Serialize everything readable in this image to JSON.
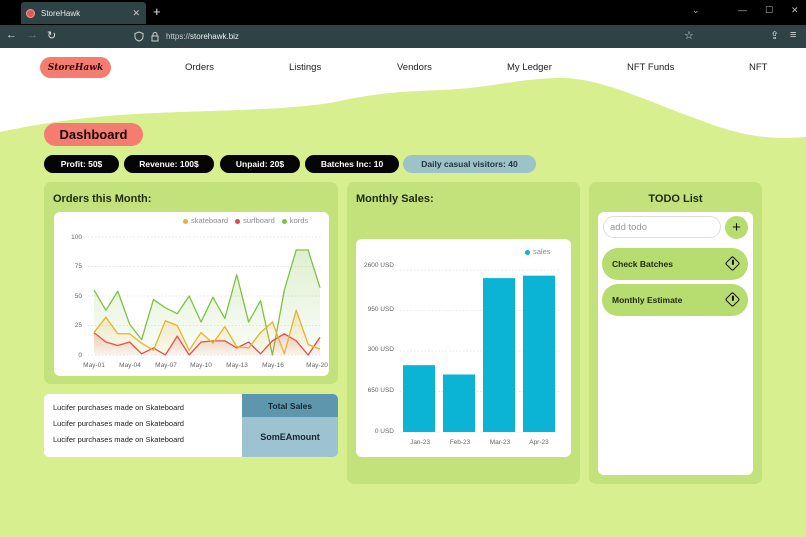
{
  "browser": {
    "tab_title": "StoreHawk",
    "tab_close": "✕",
    "new_tab": "+",
    "url_scheme": "https://",
    "url_host": "storehawk.biz",
    "back": "←",
    "forward": "→",
    "reload": "↻",
    "bookmark": "☆",
    "extensions": "⇪",
    "menu": "≡",
    "win_dropdown": "⌄",
    "win_min": "—",
    "win_max": "☐",
    "win_close": "✕"
  },
  "nav": {
    "logo": "StoreHawk",
    "items": [
      "Orders",
      "Listings",
      "Vendors",
      "My Ledger",
      "NFT Funds",
      "NFT"
    ]
  },
  "dashboard": {
    "title": "Dashboard",
    "stats": [
      {
        "label": "Profit: 50$"
      },
      {
        "label": "Revenue: 100$"
      },
      {
        "label": "Unpaid: 20$"
      },
      {
        "label": "Batches Inc: 10"
      },
      {
        "label": "Daily casual visitors: 40"
      }
    ]
  },
  "orders_card": {
    "title": "Orders this Month:"
  },
  "sales_table": {
    "rows": [
      "Lucifer purchases made on Skateboard",
      "Lucifer purchases made on Skateboard",
      "Lucifer purchases made on Skateboard"
    ],
    "total_header": "Total Sales",
    "total_value": "SomEAmount"
  },
  "monthly_card": {
    "title": "Monthly Sales:"
  },
  "todo": {
    "title": "TODO List",
    "input_placeholder": "add todo",
    "add_button": "+",
    "items": [
      "Check Batches",
      "Monthly Estimate"
    ]
  },
  "colors": {
    "skateboard": "#e8b130",
    "surfboard": "#e04a4a",
    "kords": "#7cc242",
    "sales": "#0bb4d4",
    "accent": "#f47c70",
    "page_bg": "#d8ef8f",
    "card_bg": "#c3e27c"
  },
  "chart_data": [
    {
      "type": "line",
      "title": "Orders this Month:",
      "x": [
        "May-01",
        "May-02",
        "May-03",
        "May-04",
        "May-05",
        "May-06",
        "May-07",
        "May-08",
        "May-09",
        "May-10",
        "May-11",
        "May-12",
        "May-13",
        "May-14",
        "May-15",
        "May-16",
        "May-17",
        "May-18",
        "May-19",
        "May-20"
      ],
      "x_tick_labels": [
        "May-01",
        "May-04",
        "May-07",
        "May-10",
        "May-13",
        "May-16",
        "May-20"
      ],
      "y_ticks": [
        0,
        25,
        50,
        75,
        100
      ],
      "ylim": [
        0,
        100
      ],
      "grid": true,
      "legend_position": "top-right",
      "series": [
        {
          "name": "skateboard",
          "color": "#e8b130",
          "values": [
            19,
            32,
            18,
            18,
            10,
            4,
            29,
            25,
            4,
            19,
            10,
            24,
            7,
            6,
            19,
            28,
            1,
            38,
            9,
            5
          ]
        },
        {
          "name": "surfboard",
          "color": "#e04a4a",
          "values": [
            19,
            11,
            8,
            11,
            1,
            6,
            0,
            16,
            0,
            11,
            12,
            12,
            6,
            11,
            1,
            12,
            18,
            12,
            0,
            15
          ]
        },
        {
          "name": "kords",
          "color": "#7cc242",
          "values": [
            55,
            38,
            54,
            26,
            13,
            47,
            40,
            35,
            50,
            28,
            49,
            31,
            68,
            28,
            46,
            0,
            55,
            89,
            89,
            57
          ]
        }
      ]
    },
    {
      "type": "bar",
      "title": "Monthly Sales:",
      "categories": [
        "Jan-23",
        "Feb-23",
        "Mar-23",
        "Apr-23"
      ],
      "y_tick_labels": [
        "0 USD",
        "650 USD",
        "300 USD",
        "950 USD",
        "2600 USD"
      ],
      "series": [
        {
          "name": "sales",
          "color": "#0bb4d4",
          "values_in_gridline_steps": [
            1.65,
            1.42,
            3.8,
            3.86
          ]
        }
      ],
      "note": "tick labels are non-monotonic as displayed; bar heights given relative to evenly-spaced gridline steps (0..4)",
      "grid": true,
      "legend_position": "top-right"
    }
  ]
}
